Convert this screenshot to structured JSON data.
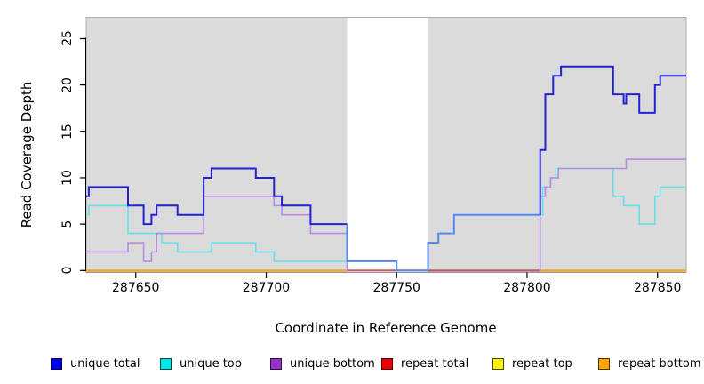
{
  "axis": {
    "ylabel": "Read Coverage Depth",
    "xlabel": "Coordinate in Reference Genome"
  },
  "chart_data": {
    "type": "line",
    "step": "after",
    "title": "",
    "xlabel": "Coordinate in Reference Genome",
    "ylabel": "Read Coverage Depth",
    "xlim": [
      287631,
      287861
    ],
    "ylim": [
      0,
      27.3
    ],
    "x_ticks": [
      "287650",
      "287700",
      "287750",
      "287800",
      "287850"
    ],
    "y_ticks": [
      "0",
      "5",
      "10",
      "15",
      "20",
      "25"
    ],
    "grid": false,
    "plot_background": "#DBDBDB",
    "plot_border": "#ADADAD",
    "highlight_band": {
      "x0": 287731,
      "x1": 287762,
      "color": "#FFFFFF",
      "note": "white unshaded region"
    },
    "series": [
      {
        "name": "unique total",
        "color": "#2323D2",
        "points": [
          [
            287631,
            8
          ],
          [
            287632,
            9
          ],
          [
            287647,
            7
          ],
          [
            287653,
            5
          ],
          [
            287656,
            6
          ],
          [
            287658,
            7
          ],
          [
            287666,
            6
          ],
          [
            287676,
            10
          ],
          [
            287679,
            11
          ],
          [
            287696,
            10
          ],
          [
            287703,
            8
          ],
          [
            287706,
            7
          ],
          [
            287717,
            5
          ],
          [
            287731,
            1
          ],
          [
            287750,
            0
          ],
          [
            287762,
            3
          ],
          [
            287766,
            4
          ],
          [
            287772,
            6
          ],
          [
            287805,
            13
          ],
          [
            287807,
            19
          ],
          [
            287810,
            21
          ],
          [
            287813,
            22
          ],
          [
            287833,
            19
          ],
          [
            287837,
            18
          ],
          [
            287838,
            19
          ],
          [
            287843,
            17
          ],
          [
            287849,
            20
          ],
          [
            287851,
            21
          ]
        ]
      },
      {
        "name": "unique top",
        "color": "#63E1EA",
        "points": [
          [
            287631,
            6
          ],
          [
            287632,
            7
          ],
          [
            287647,
            4
          ],
          [
            287660,
            3
          ],
          [
            287666,
            2
          ],
          [
            287679,
            3
          ],
          [
            287696,
            2
          ],
          [
            287703,
            1
          ],
          [
            287750,
            0
          ],
          [
            287762,
            3
          ],
          [
            287766,
            4
          ],
          [
            287772,
            6
          ],
          [
            287806,
            9
          ],
          [
            287809,
            10
          ],
          [
            287811,
            11
          ],
          [
            287833,
            8
          ],
          [
            287837,
            7
          ],
          [
            287843,
            5
          ],
          [
            287849,
            8
          ],
          [
            287851,
            9
          ]
        ]
      },
      {
        "name": "unique bottom",
        "color": "#B78BDF",
        "points": [
          [
            287631,
            2
          ],
          [
            287647,
            3
          ],
          [
            287653,
            1
          ],
          [
            287656,
            2
          ],
          [
            287658,
            4
          ],
          [
            287676,
            8
          ],
          [
            287703,
            7
          ],
          [
            287706,
            6
          ],
          [
            287717,
            4
          ],
          [
            287731,
            0
          ],
          [
            287805,
            8
          ],
          [
            287807,
            9
          ],
          [
            287809,
            10
          ],
          [
            287812,
            11
          ],
          [
            287838,
            12
          ]
        ]
      },
      {
        "name": "repeat total",
        "color": "#E03333",
        "points": [
          [
            287631,
            0
          ]
        ]
      },
      {
        "name": "repeat top",
        "color": "#FFE800",
        "points": [
          [
            287631,
            0
          ]
        ]
      },
      {
        "name": "repeat bottom",
        "color": "#FFA514",
        "points": [
          [
            287631,
            0
          ]
        ]
      }
    ],
    "render_layers": [
      {
        "series": "repeat total",
        "color": "#E03333",
        "width": 1.5
      },
      {
        "series": "repeat top",
        "color": "#FFE800",
        "width": 1.5
      },
      {
        "series": "repeat bottom",
        "color": "#FFA514",
        "width": 2
      },
      {
        "series": "repeat bottom",
        "color": "#C2557A",
        "width": 1.8,
        "from": 287731,
        "to": 287805
      },
      {
        "series": "unique top",
        "color": "#63E1EA",
        "width": 1.6
      },
      {
        "series": "unique bottom",
        "color": "#B78BDF",
        "width": 1.6,
        "to": 287731.3
      },
      {
        "series": "unique bottom",
        "color": "#B78BDF",
        "width": 1.6,
        "from": 287804.7
      },
      {
        "series": "unique total",
        "color": "#2323D2",
        "width": 2,
        "to": 287731
      },
      {
        "series": "unique total",
        "color": "#5A87EE",
        "width": 2,
        "from": 287731,
        "to": 287805
      },
      {
        "series": "unique total",
        "color": "#2323D2",
        "width": 2,
        "from": 287805
      }
    ]
  },
  "legend": {
    "items": [
      {
        "label": "unique total",
        "color": "#0000EE"
      },
      {
        "label": "unique top",
        "color": "#00E6E6"
      },
      {
        "label": "unique bottom",
        "color": "#9932CC"
      },
      {
        "label": "repeat total",
        "color": "#EE0000"
      },
      {
        "label": "repeat top",
        "color": "#FFF200"
      },
      {
        "label": "repeat bottom",
        "color": "#FFA500"
      }
    ]
  }
}
